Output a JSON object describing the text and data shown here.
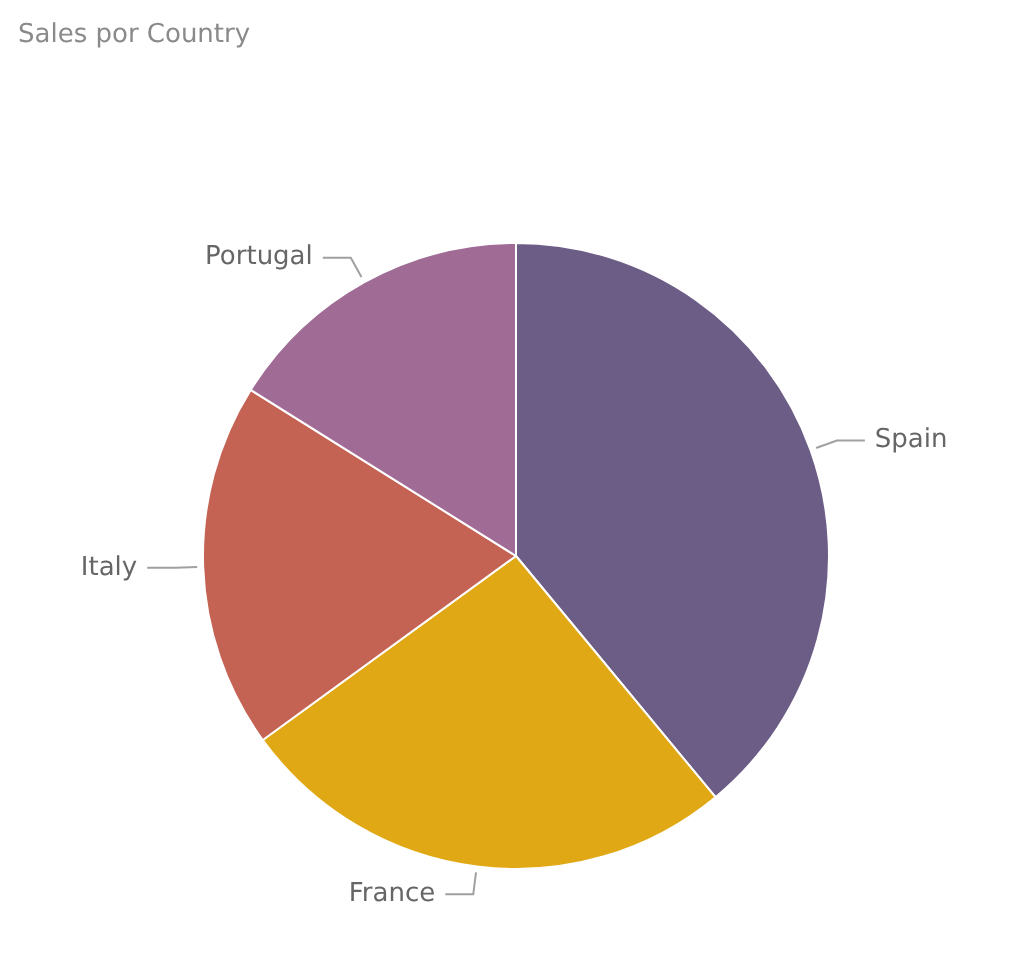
{
  "chart_data": {
    "type": "pie",
    "title": "Sales por Country",
    "categories": [
      "Spain",
      "France",
      "Italy",
      "Portugal"
    ],
    "values": [
      39,
      26,
      18.9,
      16.1
    ],
    "colors": [
      "#6c5d86",
      "#e0a814",
      "#c46253",
      "#a06c96"
    ],
    "legend": false
  }
}
